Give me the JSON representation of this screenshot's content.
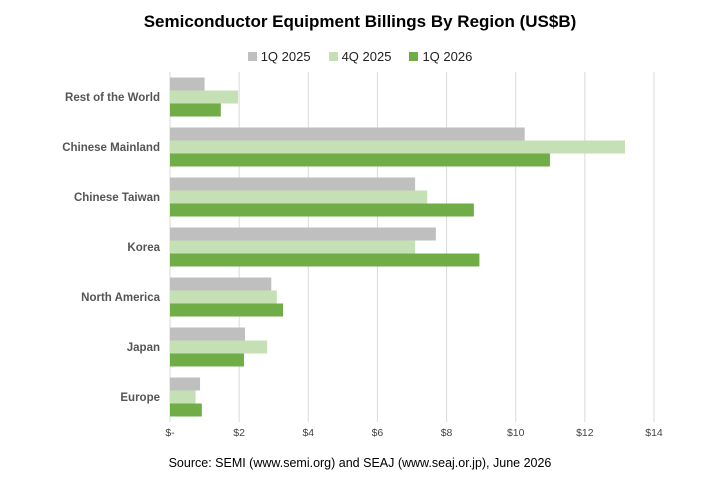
{
  "chart_data": {
    "type": "bar",
    "orientation": "horizontal",
    "title": "Semiconductor Equipment Billings By Region (US$B)",
    "categories": [
      "Rest of the World",
      "Chinese Mainland",
      "Chinese Taiwan",
      "Korea",
      "North America",
      "Japan",
      "Europe"
    ],
    "series": [
      {
        "name": "1Q 2025",
        "color": "#bfbfbf",
        "values": [
          1.0,
          10.26,
          7.09,
          7.69,
          2.93,
          2.17,
          0.87
        ]
      },
      {
        "name": "4Q 2025",
        "color": "#c5e0b4",
        "values": [
          1.97,
          13.16,
          7.44,
          7.09,
          3.09,
          2.81,
          0.74
        ]
      },
      {
        "name": "1Q 2026",
        "color": "#70ad47",
        "values": [
          1.47,
          10.99,
          8.79,
          8.95,
          3.27,
          2.14,
          0.92
        ]
      }
    ],
    "xlim": [
      0,
      14
    ],
    "x_ticks": [
      0,
      2,
      4,
      6,
      8,
      10,
      12,
      14
    ],
    "x_tick_labels": [
      "$-",
      "$2",
      "$4",
      "$6",
      "$8",
      "$10",
      "$12",
      "$14"
    ],
    "grid": "vertical",
    "legend_position": "top",
    "source": "Source: SEMI (www.semi.org)  and SEAJ (www.seaj.or.jp),  June 2026"
  }
}
